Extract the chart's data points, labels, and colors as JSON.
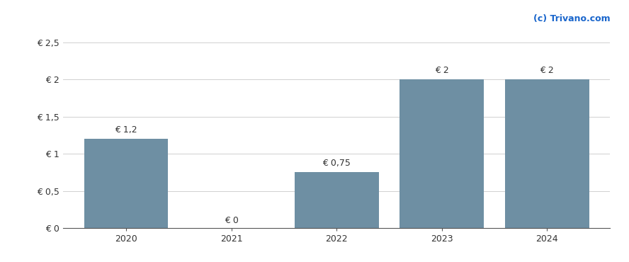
{
  "categories": [
    "2020",
    "2021",
    "2022",
    "2023",
    "2024"
  ],
  "values": [
    1.2,
    0,
    0.75,
    2.0,
    2.0
  ],
  "bar_color": "#6e8fa3",
  "bar_labels": [
    "€ 1,2",
    "€ 0",
    "€ 0,75",
    "€ 2",
    "€ 2"
  ],
  "yticks": [
    0,
    0.5,
    1.0,
    1.5,
    2.0,
    2.5
  ],
  "ytick_labels": [
    "€ 0",
    "€ 0,5",
    "€ 1",
    "€ 1,5",
    "€ 2",
    "€ 2,5"
  ],
  "ylim": [
    0,
    2.65
  ],
  "background_color": "#ffffff",
  "watermark": "(c) Trivano.com",
  "watermark_color": "#1a66cc",
  "grid_color": "#d0d0d0",
  "bar_width": 0.8,
  "label_fontsize": 9,
  "tick_fontsize": 9,
  "watermark_fontsize": 9
}
